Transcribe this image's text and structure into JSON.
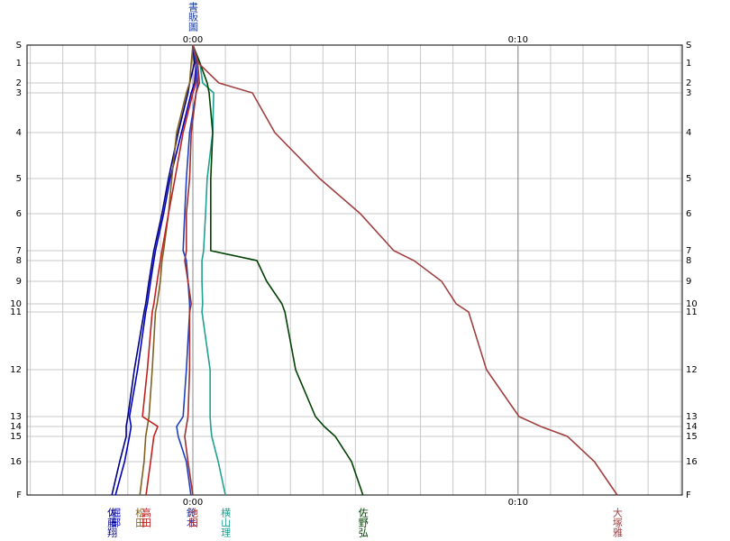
{
  "chart_data": {
    "type": "line",
    "title": "書販圖",
    "controls": [
      "S",
      "1",
      "2",
      "3",
      "4",
      "5",
      "6",
      "7",
      "8",
      "9",
      "10",
      "11",
      "12",
      "13",
      "14",
      "15",
      "16",
      "F"
    ],
    "control_positions": [
      0,
      20,
      42,
      53,
      97,
      148,
      187,
      228,
      239,
      262,
      287,
      296,
      360,
      412,
      423,
      434,
      462,
      499
    ],
    "ylim": [
      0,
      499
    ],
    "xlim": [
      -5.1,
      15.05
    ],
    "xticks": [
      {
        "value": 0,
        "label": "0:00"
      },
      {
        "value": 10,
        "label": "0:10"
      }
    ],
    "x_gridlines": [
      -5,
      -4,
      -3,
      -2,
      -1,
      0,
      1,
      2,
      3,
      4,
      5,
      6,
      7,
      8,
      9,
      10,
      11,
      12,
      13,
      14,
      15
    ],
    "grid": true,
    "series": [
      {
        "name": "佐藤翔",
        "color": "#000080",
        "values": [
          0,
          0.05,
          -0.1,
          -0.15,
          -0.45,
          -0.75,
          -0.95,
          -1.2,
          -1.25,
          -1.35,
          -1.45,
          -1.5,
          -1.8,
          -2.0,
          -2.05,
          -2.05,
          -2.25,
          -2.49
        ]
      },
      {
        "name": "堀部",
        "color": "#0000c0",
        "values": [
          0,
          0.1,
          0.05,
          -0.05,
          -0.35,
          -0.7,
          -0.9,
          -1.15,
          -1.2,
          -1.3,
          -1.4,
          -1.45,
          -1.7,
          -1.95,
          -1.9,
          -1.95,
          -2.1,
          -2.38
        ]
      },
      {
        "name": "松田",
        "color": "#806020",
        "values": [
          0,
          -0.05,
          -0.1,
          -0.2,
          -0.5,
          -0.65,
          -0.75,
          -0.9,
          -0.95,
          -1.0,
          -1.1,
          -1.15,
          -1.25,
          -1.35,
          -1.4,
          -1.45,
          -1.5,
          -1.63
        ]
      },
      {
        "name": "高田",
        "color": "#c02020",
        "values": [
          0,
          0.1,
          0.1,
          0.0,
          -0.3,
          -0.55,
          -0.75,
          -0.95,
          -1.0,
          -1.1,
          -1.2,
          -1.25,
          -1.4,
          -1.55,
          -1.08,
          -1.2,
          -1.3,
          -1.44
        ]
      },
      {
        "name": "鈴木",
        "color": "#2040c0",
        "values": [
          0,
          0.1,
          0.15,
          0.1,
          -0.1,
          -0.2,
          -0.25,
          -0.3,
          -0.2,
          -0.15,
          -0.1,
          -0.1,
          -0.2,
          -0.3,
          -0.5,
          -0.45,
          -0.2,
          -0.06
        ]
      },
      {
        "name": "池田",
        "color": "#a03030",
        "values": [
          0,
          0.15,
          0.2,
          0.1,
          -0.05,
          -0.1,
          -0.2,
          -0.2,
          -0.25,
          -0.15,
          -0.05,
          -0.1,
          -0.1,
          -0.15,
          -0.2,
          -0.25,
          -0.15,
          0.0
        ]
      },
      {
        "name": "横山理",
        "color": "#20a090",
        "values": [
          0,
          0.22,
          0.3,
          0.64,
          0.61,
          0.44,
          0.39,
          0.33,
          0.28,
          0.28,
          0.3,
          0.28,
          0.53,
          0.53,
          0.55,
          0.58,
          0.78,
          1.0
        ]
      },
      {
        "name": "佐野弘",
        "color": "#004000",
        "values": [
          0,
          0.22,
          0.44,
          0.5,
          0.61,
          0.55,
          0.55,
          0.55,
          1.97,
          2.27,
          2.74,
          2.83,
          3.16,
          3.77,
          4.04,
          4.38,
          4.88,
          5.23
        ]
      },
      {
        "name": "大塚雅",
        "color": "#a04040",
        "values": [
          0,
          0.17,
          0.8,
          1.83,
          2.52,
          3.9,
          5.15,
          6.18,
          6.8,
          7.65,
          8.1,
          8.48,
          9.03,
          10.03,
          10.7,
          11.52,
          12.35,
          13.05
        ]
      }
    ]
  }
}
